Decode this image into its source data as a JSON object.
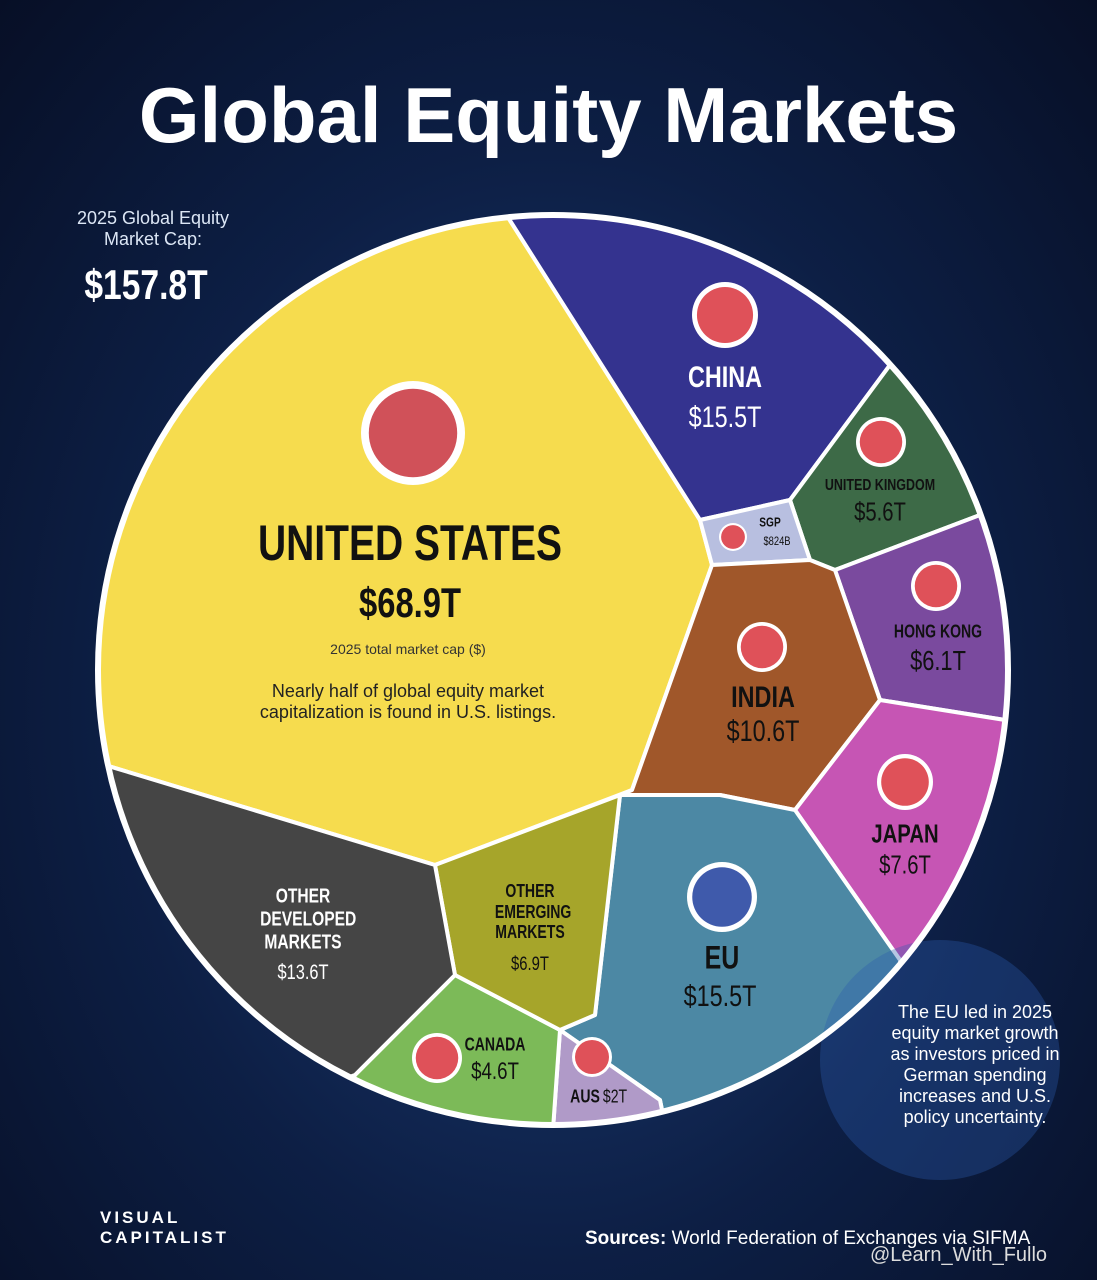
{
  "chart_data": {
    "type": "voronoi-treemap",
    "title": "Global Equity Markets",
    "total": {
      "label": "2025 Global Equity Market Cap:",
      "value": 157.8,
      "value_label": "$157.8T"
    },
    "categories": [
      "UNITED STATES",
      "CHINA",
      "UNITED KINGDOM",
      "SGP",
      "HONG KONG",
      "INDIA",
      "JAPAN",
      "EU",
      "AUS",
      "CANADA",
      "OTHER EMERGING MARKETS",
      "OTHER DEVELOPED MARKETS"
    ],
    "values": [
      68.9,
      15.5,
      5.6,
      0.824,
      6.1,
      10.6,
      7.6,
      15.5,
      2,
      4.6,
      6.9,
      13.6
    ],
    "value_labels": [
      "$68.9T",
      "$15.5T",
      "$5.6T",
      "$824B",
      "$6.1T",
      "$10.6T",
      "$7.6T",
      "$15.5T",
      "$2T",
      "$4.6T",
      "$6.9T",
      "$13.6T"
    ],
    "colors": [
      "#f6dc4e",
      "#34338f",
      "#3d6a47",
      "#b8bfe0",
      "#7a4a9e",
      "#a0572a",
      "#c655b4",
      "#4c88a4",
      "#b09ac8",
      "#7cba58",
      "#a6a52a",
      "#454545"
    ],
    "us_subtitle": "2025 total market cap ($)",
    "us_note": "Nearly half of global equity market capitalization is found in U.S. listings.",
    "eu_note": "The EU led in 2025 equity market growth as investors priced in German spending increases and U.S. policy uncertainty.",
    "source_label": "Sources:",
    "source": "World Federation of Exchanges via SIFMA",
    "logo": "VISUAL CAPITALIST",
    "watermark": "@Learn_With_Fullo"
  }
}
